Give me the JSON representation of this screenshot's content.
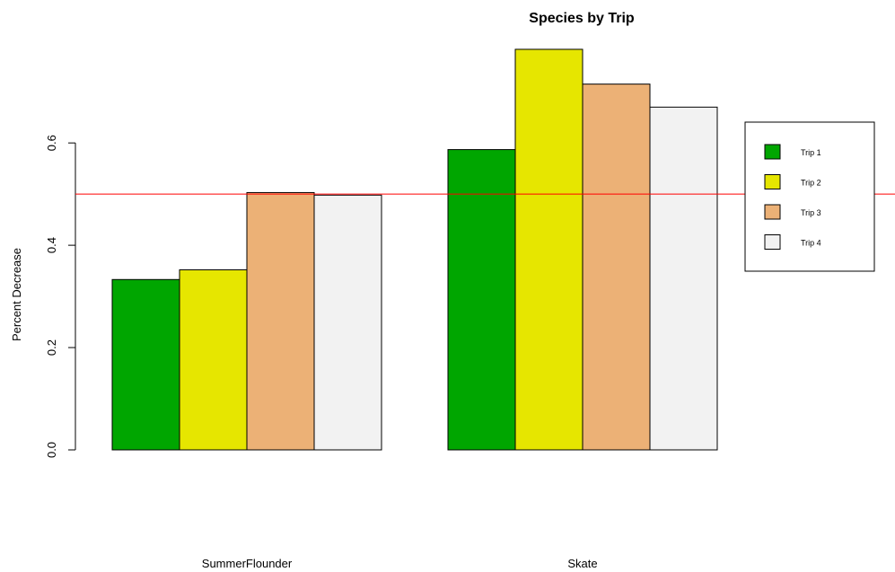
{
  "chart_data": {
    "type": "bar",
    "title": "Species by Trip",
    "ylabel": "Percent Decrease",
    "xlabel": "",
    "categories": [
      "SummerFlounder",
      "Skate"
    ],
    "series": [
      {
        "name": "Trip 1",
        "color": "#00a600",
        "values": [
          0.333,
          0.587
        ]
      },
      {
        "name": "Trip 2",
        "color": "#e6e600",
        "values": [
          0.352,
          0.783
        ]
      },
      {
        "name": "Trip 3",
        "color": "#ecb176",
        "values": [
          0.503,
          0.715
        ]
      },
      {
        "name": "Trip 4",
        "color": "#f2f2f2",
        "values": [
          0.498,
          0.67
        ]
      }
    ],
    "ylim": [
      0,
      0.8
    ],
    "yticks": [
      0.0,
      0.2,
      0.4,
      0.6
    ],
    "ytick_labels": [
      "0.0",
      "0.2",
      "0.4",
      "0.6"
    ],
    "reference_line": {
      "y": 0.5,
      "color": "#ff0000"
    },
    "legend": {
      "placement": "right",
      "entries": [
        "Trip 1",
        "Trip 2",
        "Trip 3",
        "Trip 4"
      ]
    },
    "grid": false
  }
}
